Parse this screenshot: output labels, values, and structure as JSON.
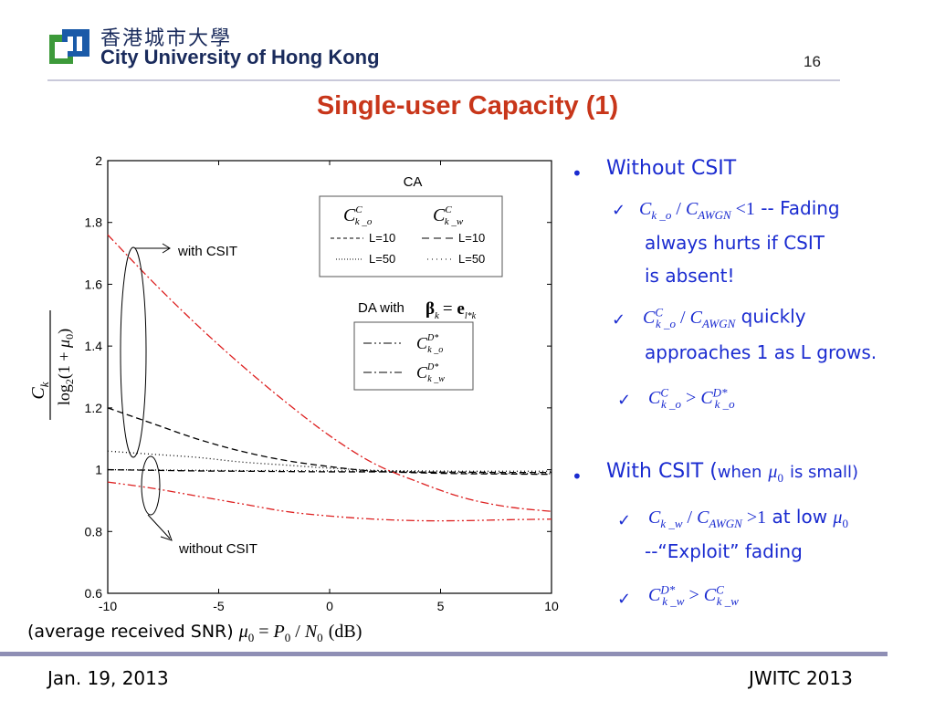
{
  "header": {
    "university_cn": "香港城市大學",
    "university_en": "City University of Hong Kong",
    "page_number": "16",
    "logo_colors": {
      "green": "#3d9a3a",
      "blue": "#1a5aa8"
    }
  },
  "title": "Single-user Capacity (1)",
  "footer": {
    "left": "Jan. 19, 2013",
    "right": "JWITC 2013"
  },
  "x_caption": {
    "text": "(average received SNR)",
    "formula": "μ0 = P0 / N0",
    "unit": "(dB)"
  },
  "bullets": [
    {
      "label": "Without CSIT",
      "items": [
        {
          "math": "Ck_o / CAWGN < 1",
          "text": " -- Fading",
          "cont": [
            "always hurts if CSIT",
            "is absent!"
          ]
        },
        {
          "math": "C^C k_o / CAWGN",
          "text": " quickly",
          "cont": [
            "approaches 1 as L grows."
          ]
        },
        {
          "math": "C^C k_o > C^D* k_o",
          "text": "",
          "cont": []
        }
      ]
    },
    {
      "label": "With CSIT (",
      "label_small": "when",
      "label_mu": "μ0",
      "label_end": "is small)",
      "items": [
        {
          "math": "Ck_w / CAWGN > 1",
          "text": " at low",
          "mu": "μ0",
          "cont": [
            "--“Exploit” fading"
          ]
        },
        {
          "math": "C^D* k_w > C^C k_w",
          "text": "",
          "cont": []
        }
      ]
    }
  ],
  "chart_data": {
    "type": "line",
    "x": [
      -10,
      -8,
      -6,
      -4,
      -2,
      0,
      2,
      4,
      6,
      8,
      10
    ],
    "xlim": [
      -10,
      10
    ],
    "ylim": [
      0.6,
      2
    ],
    "x_ticks": [
      "-10",
      "-5",
      "0",
      "5",
      "10"
    ],
    "x_tick_values": [
      -10,
      -5,
      0,
      5,
      10
    ],
    "y_ticks": [
      "0.6",
      "0.8",
      "1",
      "1.2",
      "1.4",
      "1.6",
      "1.8",
      "2"
    ],
    "y_tick_values": [
      0.6,
      0.8,
      1.0,
      1.2,
      1.4,
      1.6,
      1.8,
      2.0
    ],
    "ylabel_num": "Ck",
    "ylabel_den": "log2(1 + μ0)",
    "series": [
      {
        "id": "cc_ko_L10",
        "color": "#000000",
        "dash": "7,4",
        "values": [
          1.2,
          1.15,
          1.1,
          1.06,
          1.03,
          1.01,
          0.995,
          0.99,
          0.987,
          0.986,
          0.985
        ]
      },
      {
        "id": "cc_ko_L50",
        "color": "#000000",
        "dash": "1,3",
        "values": [
          1.06,
          1.05,
          1.04,
          1.025,
          1.015,
          1.005,
          0.998,
          0.993,
          0.99,
          0.988,
          0.987
        ]
      },
      {
        "id": "cc_kw_L10",
        "color": "#000000",
        "dash": "7,4",
        "values": [
          1.0,
          0.998,
          0.996,
          0.995,
          0.994,
          0.993,
          0.993,
          0.992,
          0.992,
          0.991,
          0.991
        ]
      },
      {
        "id": "cc_kw_L50",
        "color": "#000000",
        "dash": "1,3",
        "values": [
          1.0,
          0.999,
          0.998,
          0.997,
          0.997,
          0.996,
          0.996,
          0.996,
          0.995,
          0.995,
          0.995
        ]
      },
      {
        "id": "cd_ko",
        "color": "#dd2020",
        "dash": "9,3,2,3,2,3",
        "values": [
          0.96,
          0.94,
          0.915,
          0.89,
          0.865,
          0.85,
          0.84,
          0.835,
          0.835,
          0.838,
          0.84
        ]
      },
      {
        "id": "cd_kw",
        "color": "#dd2020",
        "dash": "9,3,2,3",
        "values": [
          1.76,
          1.61,
          1.47,
          1.34,
          1.22,
          1.11,
          1.02,
          0.96,
          0.91,
          0.88,
          0.865
        ]
      }
    ],
    "legend_ca": {
      "title": "CA",
      "col1_head": "C^C k_o",
      "col2_head": "C^C k_w",
      "rows": [
        [
          "L=10",
          "L=10"
        ],
        [
          "L=50",
          "L=50"
        ]
      ]
    },
    "legend_da": {
      "title": "DA with",
      "title_math": "βk = e l*k",
      "rows": [
        "C^D* k_o",
        "C^D* k_w"
      ]
    },
    "annotations": [
      "with CSIT",
      "without CSIT"
    ]
  }
}
